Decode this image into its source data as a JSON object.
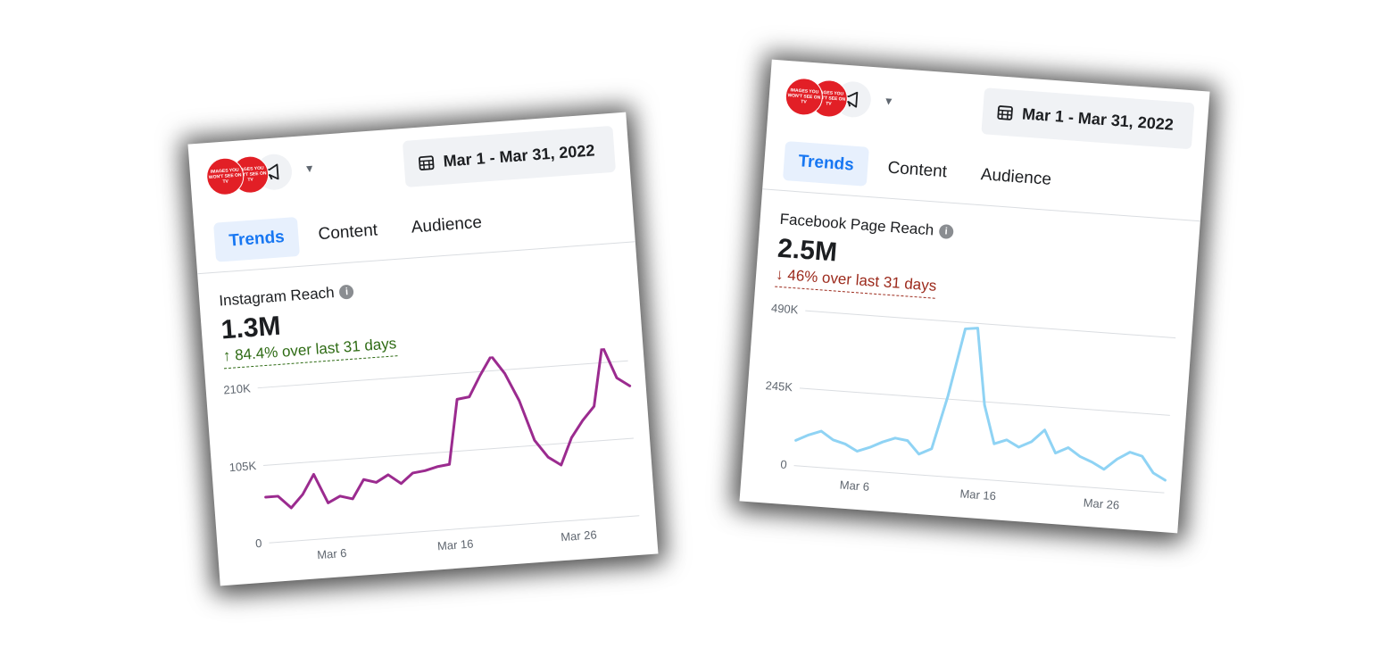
{
  "cards": [
    {
      "id": "instagram",
      "header": {
        "avatar_text": "IMAGES YOU WON'T SEE ON TV",
        "date_range": "Mar 1 - Mar 31, 2022"
      },
      "tabs": [
        "Trends",
        "Content",
        "Audience"
      ],
      "active_tab": "Trends",
      "metric": {
        "title": "Instagram Reach",
        "value": "1.3M",
        "change": "↑ 84.4% over last 31 days",
        "direction": "up"
      },
      "chart_data": {
        "type": "line",
        "x_tick_labels": [
          "Mar 6",
          "Mar 16",
          "Mar 26"
        ],
        "x_tick_days": [
          6,
          16,
          26
        ],
        "y_tick_labels": [
          "0",
          "105K",
          "210K"
        ],
        "ylim": [
          0,
          210000
        ],
        "color": "#9b2b8f",
        "x": [
          1,
          2,
          3,
          4,
          5,
          6,
          7,
          8,
          9,
          10,
          11,
          12,
          13,
          14,
          15,
          16,
          17,
          18,
          19,
          20,
          21,
          22,
          23,
          24,
          25,
          26,
          27,
          28,
          29,
          30,
          31
        ],
        "values": [
          62000,
          62000,
          45000,
          62000,
          88000,
          48000,
          56000,
          51000,
          76000,
          71000,
          80000,
          67000,
          80000,
          82000,
          86000,
          88000,
          175000,
          177000,
          205000,
          230000,
          205000,
          167000,
          112000,
          88000,
          76000,
          112000,
          134000,
          152000,
          233000,
          188000,
          176000
        ]
      }
    },
    {
      "id": "facebook",
      "header": {
        "avatar_text": "IMAGES YOU WON'T SEE ON TV",
        "date_range": "Mar 1 - Mar 31, 2022"
      },
      "tabs": [
        "Trends",
        "Content",
        "Audience"
      ],
      "active_tab": "Trends",
      "metric": {
        "title": "Facebook Page Reach",
        "value": "2.5M",
        "change": "↓ 46% over last 31 days",
        "direction": "down"
      },
      "chart_data": {
        "type": "line",
        "x_tick_labels": [
          "Mar 6",
          "Mar 16",
          "Mar 26"
        ],
        "x_tick_days": [
          6,
          16,
          26
        ],
        "y_tick_labels": [
          "0",
          "245K",
          "490K"
        ],
        "ylim": [
          0,
          490000
        ],
        "color": "#8fd3f4",
        "x": [
          1,
          2,
          3,
          4,
          5,
          6,
          7,
          8,
          9,
          10,
          11,
          12,
          13,
          14,
          15,
          16,
          17,
          18,
          19,
          20,
          21,
          22,
          23,
          24,
          25,
          26,
          27,
          28,
          29,
          30,
          31
        ],
        "values": [
          80000,
          100000,
          115000,
          90000,
          80000,
          60000,
          75000,
          95000,
          110000,
          105000,
          65000,
          85000,
          255000,
          470000,
          475000,
          235000,
          115000,
          130000,
          110000,
          130000,
          170000,
          100000,
          120000,
          95000,
          80000,
          60000,
          95000,
          120000,
          110000,
          60000,
          40000
        ]
      }
    }
  ]
}
